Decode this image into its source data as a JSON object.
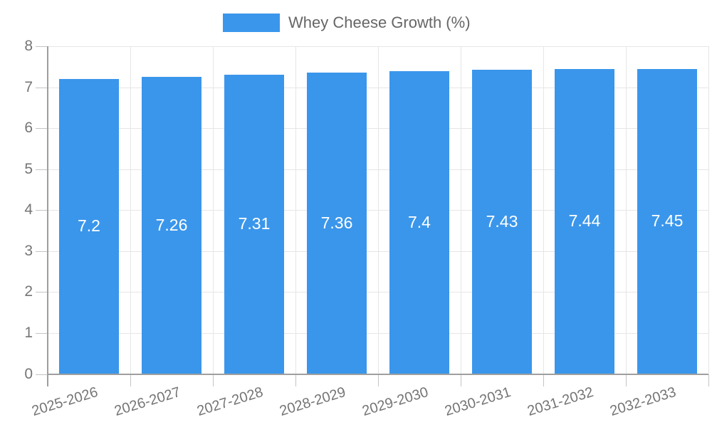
{
  "legend": {
    "label": "Whey Cheese Growth (%)"
  },
  "chart_data": {
    "type": "bar",
    "title": "Whey Cheese Growth (%)",
    "categories": [
      "2025-2026",
      "2026-2027",
      "2027-2028",
      "2028-2029",
      "2029-2030",
      "2030-2031",
      "2031-2032",
      "2032-2033"
    ],
    "series": [
      {
        "name": "Whey Cheese Growth (%)",
        "values": [
          7.2,
          7.26,
          7.31,
          7.36,
          7.4,
          7.43,
          7.44,
          7.45
        ],
        "value_labels": [
          "7.2",
          "7.26",
          "7.31",
          "7.36",
          "7.4",
          "7.43",
          "7.44",
          "7.45"
        ]
      }
    ],
    "xlabel": "",
    "ylabel": "",
    "ylim": [
      0,
      8
    ],
    "yticks": [
      "0",
      "1",
      "2",
      "3",
      "4",
      "5",
      "6",
      "7",
      "8"
    ],
    "grid": true,
    "legend_position": "top"
  },
  "colors": {
    "bar": "#3A96EB",
    "grid": "#E6E6E6",
    "axis": "#9E9E9E",
    "tick": "#C4C4C4",
    "axis_text": "#757575",
    "legend_text": "#666666",
    "value_text": "#FFFFFF"
  }
}
